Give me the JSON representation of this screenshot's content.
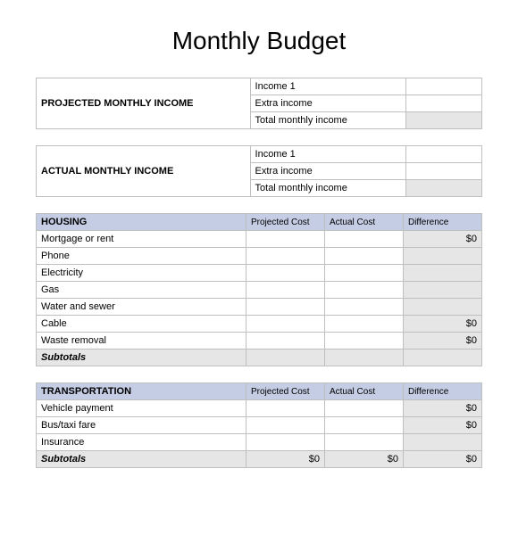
{
  "title": "Monthly Budget",
  "projected_income": {
    "label": "PROJECTED MONTHLY INCOME",
    "rows": [
      {
        "label": "Income 1",
        "value": ""
      },
      {
        "label": "Extra income",
        "value": ""
      },
      {
        "label": "Total monthly income",
        "value": "",
        "total": true
      }
    ]
  },
  "actual_income": {
    "label": "ACTUAL MONTHLY INCOME",
    "rows": [
      {
        "label": "Income 1",
        "value": ""
      },
      {
        "label": "Extra income",
        "value": ""
      },
      {
        "label": "Total monthly income",
        "value": "",
        "total": true
      }
    ]
  },
  "col_headers": [
    "Projected Cost",
    "Actual Cost",
    "Difference"
  ],
  "housing": {
    "title": "HOUSING",
    "rows": [
      {
        "label": "Mortgage or rent",
        "proj": "",
        "actual": "",
        "diff": "$0"
      },
      {
        "label": "Phone",
        "proj": "",
        "actual": "",
        "diff": ""
      },
      {
        "label": "Electricity",
        "proj": "",
        "actual": "",
        "diff": ""
      },
      {
        "label": "Gas",
        "proj": "",
        "actual": "",
        "diff": ""
      },
      {
        "label": "Water and sewer",
        "proj": "",
        "actual": "",
        "diff": ""
      },
      {
        "label": "Cable",
        "proj": "",
        "actual": "",
        "diff": "$0"
      },
      {
        "label": "Waste removal",
        "proj": "",
        "actual": "",
        "diff": "$0"
      }
    ],
    "subtotal": {
      "label": "Subtotals",
      "proj": "",
      "actual": "",
      "diff": ""
    }
  },
  "transportation": {
    "title": "TRANSPORTATION",
    "rows": [
      {
        "label": "Vehicle payment",
        "proj": "",
        "actual": "",
        "diff": "$0"
      },
      {
        "label": "Bus/taxi fare",
        "proj": "",
        "actual": "",
        "diff": "$0"
      },
      {
        "label": "Insurance",
        "proj": "",
        "actual": "",
        "diff": ""
      }
    ],
    "subtotal": {
      "label": "Subtotals",
      "proj": "$0",
      "actual": "$0",
      "diff": "$0"
    }
  }
}
